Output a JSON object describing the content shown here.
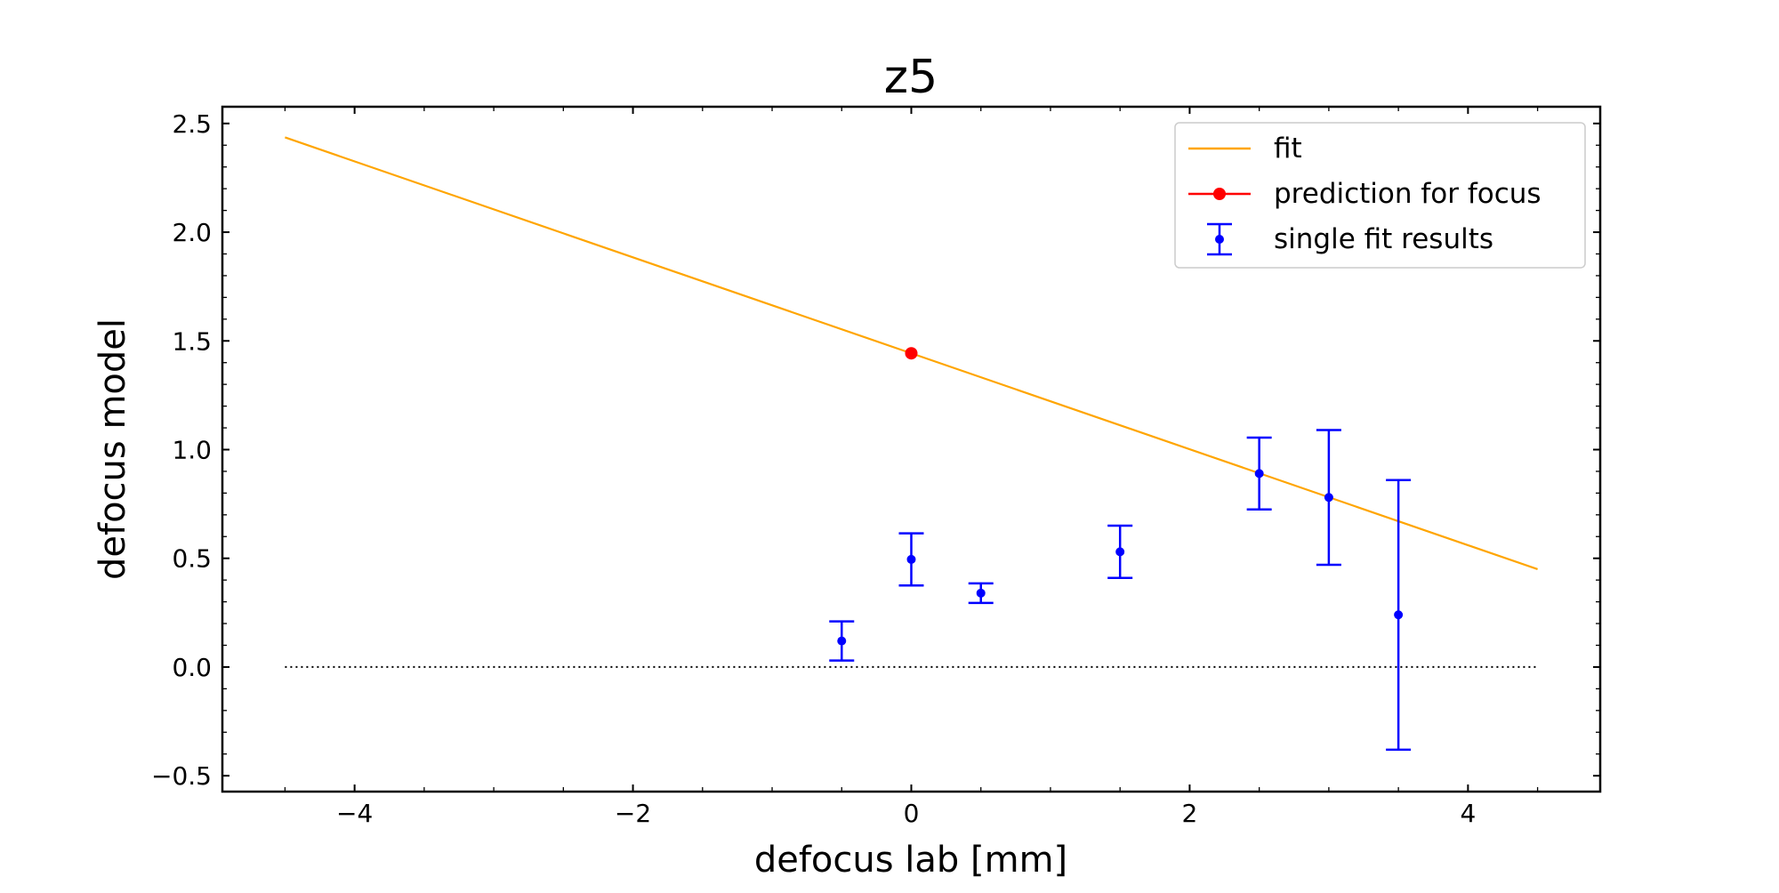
{
  "chart_data": {
    "type": "scatter",
    "title": "z5",
    "xlabel": "defocus lab [mm]",
    "ylabel": "defocus model",
    "xlim": [
      -4.95,
      4.95
    ],
    "ylim": [
      -0.573,
      2.577
    ],
    "xticks": [
      -4,
      -2,
      0,
      2,
      4
    ],
    "xtick_labels": [
      "−4",
      "−2",
      "0",
      "2",
      "4"
    ],
    "yticks": [
      -0.5,
      0.0,
      0.5,
      1.0,
      1.5,
      2.0,
      2.5
    ],
    "ytick_labels": [
      "−0.5",
      "0.0",
      "0.5",
      "1.0",
      "1.5",
      "2.0",
      "2.5"
    ],
    "grid": false,
    "legend_position": "top-right",
    "series": [
      {
        "name": "fit",
        "kind": "line",
        "color": "#ffa500",
        "x": [
          -4.5,
          4.5
        ],
        "y": [
          2.436,
          0.45
        ]
      },
      {
        "name": "prediction for focus",
        "kind": "marker",
        "color": "#ff0000",
        "x": [
          0
        ],
        "y": [
          1.443
        ]
      },
      {
        "name": "single fit results",
        "kind": "errorbar",
        "color": "#0000ff",
        "x": [
          -0.5,
          0.0,
          0.5,
          1.5,
          2.5,
          3.0,
          3.5
        ],
        "y": [
          0.12,
          0.495,
          0.34,
          0.53,
          0.89,
          0.78,
          0.24
        ],
        "yerr": [
          0.09,
          0.12,
          0.045,
          0.12,
          0.165,
          0.31,
          0.62
        ]
      },
      {
        "name": "zero reference",
        "kind": "dotted-line",
        "color": "#000000",
        "x": [
          -4.5,
          4.5
        ],
        "y": [
          0,
          0
        ]
      }
    ]
  }
}
